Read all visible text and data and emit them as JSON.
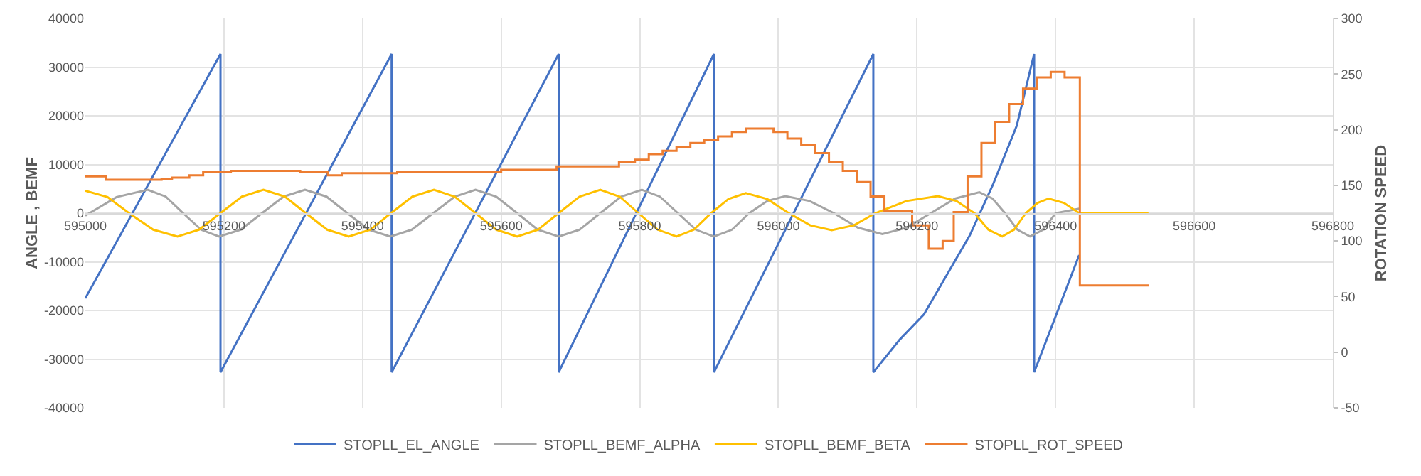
{
  "chart_data": {
    "type": "line",
    "ylabel": "ANGLE , BEMF",
    "y2label": "ROTATION SPEED",
    "xlim": [
      595000,
      596800
    ],
    "xticks": [
      595000,
      595200,
      595400,
      595600,
      595800,
      596000,
      596200,
      596400,
      596600,
      596800
    ],
    "ylim": [
      -40000,
      40000
    ],
    "yticks": [
      -40000,
      -30000,
      -20000,
      -10000,
      0,
      10000,
      20000,
      30000,
      40000
    ],
    "y2lim": [
      -50,
      300
    ],
    "y2ticks": [
      -50,
      0,
      50,
      100,
      150,
      200,
      250,
      300
    ],
    "grid": true,
    "legend": "bottom",
    "line_style": "solid",
    "marker": "none",
    "series": [
      {
        "name": "STOPLL_EL_ANGLE",
        "color": "#4472c4",
        "x": [
          595000,
          595195,
          595195,
          595442,
          595442,
          595683,
          595683,
          595907,
          595907,
          596137,
          596137,
          596175,
          596210,
          596250,
          596276,
          596310,
          596344,
          596369,
          596369,
          596434
        ],
        "values": [
          -17500,
          32700,
          -32700,
          32700,
          -32700,
          32700,
          -32700,
          32700,
          -32700,
          32700,
          -32700,
          -26000,
          -20800,
          -11000,
          -4600,
          6000,
          18000,
          32700,
          -32700,
          -8600
        ]
      },
      {
        "name": "STOPLL_BEMF_ALPHA",
        "color": "#a5a5a5",
        "x": [
          595000,
          595045,
          595090,
          595116,
          595141,
          595167,
          595193,
          595224,
          595255,
          595286,
          595317,
          595348,
          595378,
          595409,
          595440,
          595471,
          595502,
          595533,
          595563,
          595593,
          595623,
          595653,
          595683,
          595713,
          595743,
          595773,
          595803,
          595829,
          595855,
          595881,
          595907,
          595933,
          595958,
          595984,
          596010,
          596045,
          596080,
          596115,
          596150,
          596185,
          596220,
          596255,
          596290,
          596309,
          596327,
          596345,
          596363,
          596382,
          596400,
          596434
        ],
        "values": [
          -500,
          3300,
          4800,
          3400,
          0,
          -3400,
          -4800,
          -3400,
          0,
          3400,
          4800,
          3400,
          0,
          -3400,
          -4800,
          -3400,
          0,
          3400,
          4800,
          3400,
          0,
          -3400,
          -4800,
          -3400,
          0,
          3400,
          4800,
          3400,
          0,
          -3400,
          -4800,
          -3400,
          0,
          2500,
          3500,
          2500,
          0,
          -3000,
          -4300,
          -3000,
          0,
          3000,
          4300,
          3000,
          0,
          -3400,
          -4800,
          -3400,
          0,
          900
        ]
      },
      {
        "name": "STOPLL_BEMF_BETA",
        "color": "#ffc000",
        "x": [
          595000,
          595032,
          595063,
          595098,
          595133,
          595164,
          595195,
          595226,
          595257,
          595288,
          595318,
          595349,
          595380,
          595411,
          595441,
          595472,
          595503,
          595533,
          595563,
          595593,
          595623,
          595653,
          595683,
          595713,
          595743,
          595771,
          595798,
          595826,
          595853,
          595878,
          595903,
          595928,
          595953,
          595984,
          596015,
          596046,
          596077,
          596109,
          596140,
          596185,
          596230,
          596257,
          596283,
          596303,
          596323,
          596340,
          596357,
          596374,
          596390,
          596412,
          596434,
          596534
        ],
        "values": [
          4600,
          3300,
          0,
          -3400,
          -4800,
          -3400,
          0,
          3400,
          4800,
          3400,
          0,
          -3400,
          -4800,
          -3400,
          0,
          3400,
          4800,
          3400,
          0,
          -3400,
          -4800,
          -3400,
          0,
          3400,
          4800,
          3400,
          0,
          -3400,
          -4800,
          -3400,
          0,
          2900,
          4100,
          2900,
          0,
          -2500,
          -3500,
          -2500,
          0,
          2500,
          3500,
          2500,
          0,
          -3400,
          -4800,
          -3400,
          0,
          2100,
          3000,
          2100,
          0,
          0
        ]
      },
      {
        "name": "STOPLL_ROT_SPEED",
        "color": "#ed7d31",
        "type": "step",
        "axis": "y2",
        "x": [
          595000,
          595030,
          595110,
          595125,
          595150,
          595170,
          595210,
          595310,
          595350,
          595370,
          595450,
          595600,
          595680,
          595770,
          595793,
          595813,
          595833,
          595853,
          595873,
          595893,
          595913,
          595933,
          595953,
          595993,
          596013,
          596033,
          596053,
          596073,
          596093,
          596113,
          596133,
          596153,
          596193,
          596217,
          596237,
          596253,
          596273,
          596293,
          596313,
          596333,
          596353,
          596373,
          596393,
          596413,
          596435,
          596535
        ],
        "values": [
          158,
          155,
          156,
          157,
          159,
          162,
          163,
          162,
          159,
          161,
          162,
          164,
          167,
          171,
          173,
          178,
          181,
          184,
          188,
          191,
          194,
          198,
          201,
          198,
          192,
          186,
          179,
          171,
          163,
          153,
          140,
          127,
          114,
          93,
          100,
          126,
          158,
          188,
          207,
          223,
          237,
          247,
          252,
          247,
          60,
          60
        ]
      }
    ]
  }
}
